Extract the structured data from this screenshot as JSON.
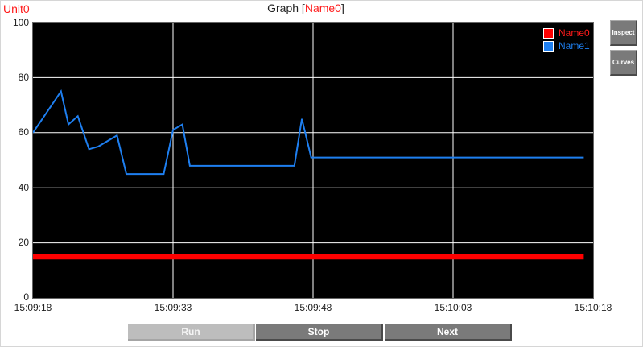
{
  "unit_label": "Unit0",
  "title": {
    "prefix": "Graph [",
    "name": "Name0",
    "suffix": "]"
  },
  "buttons": {
    "inspect": "Inspect",
    "curves": "Curves",
    "run": "Run",
    "stop": "Stop",
    "next": "Next"
  },
  "colors": {
    "plot_background": "#000000",
    "grid": "#ffffff",
    "name0": "#ff0000",
    "name1": "#1e7ff0"
  },
  "chart_data": {
    "type": "line",
    "title": "Graph [Name0]",
    "xlabel": "",
    "ylabel": "",
    "ylim": [
      0,
      100
    ],
    "y_ticks": [
      "0",
      "20",
      "40",
      "60",
      "80",
      "100"
    ],
    "x_ticks": [
      "15:09:18",
      "15:09:33",
      "15:09:48",
      "15:10:03",
      "15:10:18"
    ],
    "x_tick_seconds": [
      0,
      15,
      30,
      45,
      60
    ],
    "xlim_seconds": [
      0,
      60
    ],
    "grid": true,
    "legend_position": "top-right",
    "series": [
      {
        "name": "Name0",
        "color": "#ff0000",
        "points": [
          [
            0,
            15
          ],
          [
            59,
            15
          ]
        ]
      },
      {
        "name": "Name1",
        "color": "#1e7ff0",
        "points": [
          [
            0,
            60
          ],
          [
            3,
            75
          ],
          [
            3.8,
            63
          ],
          [
            4.8,
            66
          ],
          [
            6,
            54
          ],
          [
            7,
            55
          ],
          [
            9,
            59
          ],
          [
            10,
            45
          ],
          [
            14,
            45
          ],
          [
            15,
            61
          ],
          [
            16,
            63
          ],
          [
            16.8,
            48
          ],
          [
            28,
            48
          ],
          [
            28.8,
            65
          ],
          [
            29.8,
            51
          ],
          [
            59,
            51
          ]
        ]
      }
    ]
  }
}
